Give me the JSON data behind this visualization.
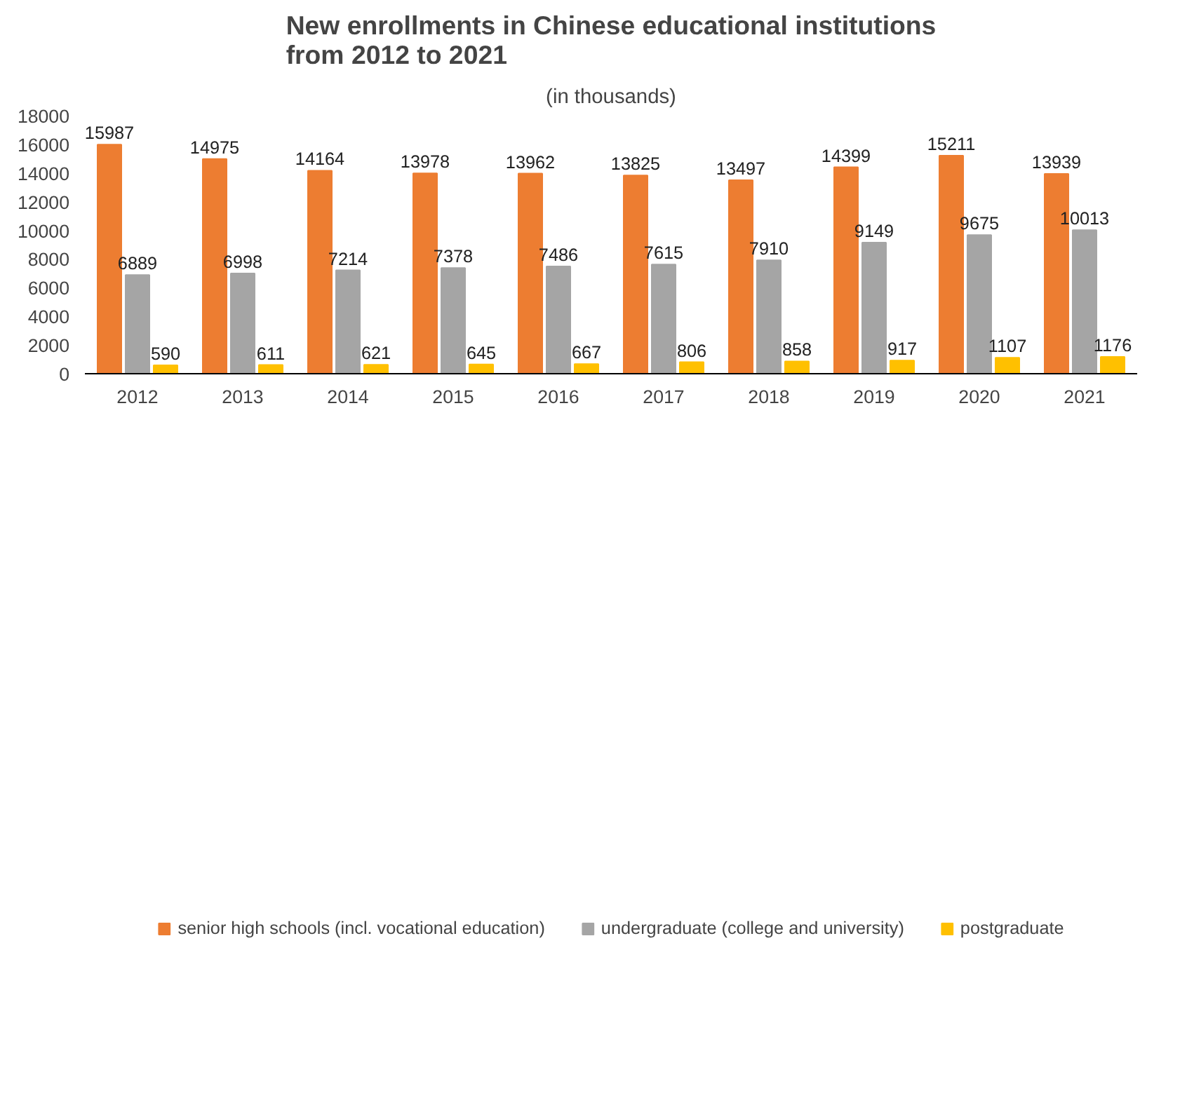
{
  "chart_data": {
    "type": "bar",
    "title": "New enrollments in Chinese educational institutions\nfrom 2012 to 2021",
    "subtitle": "(in thousands)",
    "categories": [
      "2012",
      "2013",
      "2014",
      "2015",
      "2016",
      "2017",
      "2018",
      "2019",
      "2020",
      "2021"
    ],
    "series": [
      {
        "name": "senior high schools (incl. vocational education)",
        "color": "#ed7d31",
        "values": [
          15987,
          14975,
          14164,
          13978,
          13962,
          13825,
          13497,
          14399,
          15211,
          13939
        ]
      },
      {
        "name": "undergraduate (college and university)",
        "color": "#a5a5a5",
        "values": [
          6889,
          6998,
          7214,
          7378,
          7486,
          7615,
          7910,
          9149,
          9675,
          10013
        ]
      },
      {
        "name": "postgraduate",
        "color": "#ffc000",
        "values": [
          590,
          611,
          621,
          645,
          667,
          806,
          858,
          917,
          1107,
          1176
        ]
      }
    ],
    "ylim": [
      0,
      18000
    ],
    "yticks": [
      0,
      2000,
      4000,
      6000,
      8000,
      10000,
      12000,
      14000,
      16000,
      18000
    ],
    "data_labels": true,
    "legend": "bottom",
    "grid": false
  }
}
